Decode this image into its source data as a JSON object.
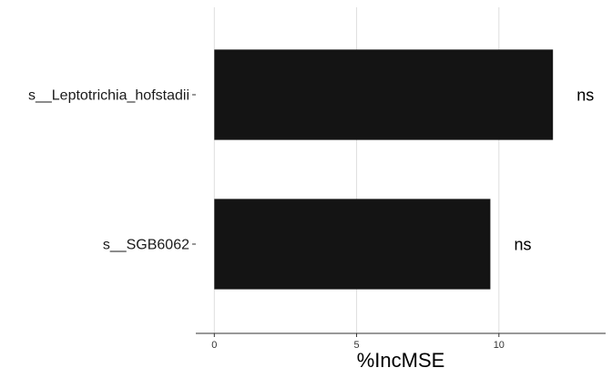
{
  "chart_data": {
    "type": "bar",
    "orientation": "horizontal",
    "title": "",
    "xlabel": "%IncMSE",
    "ylabel": "",
    "categories": [
      "s__Leptotrichia_hofstadii",
      "s__SGB6062"
    ],
    "values": [
      11.9,
      9.7
    ],
    "annotations": [
      "ns",
      "ns"
    ],
    "xlim": [
      -0.65,
      13.75
    ],
    "xticks": [
      0,
      5,
      10
    ],
    "grid": "vertical-major",
    "legend": "none",
    "bar_color": "#141414"
  }
}
